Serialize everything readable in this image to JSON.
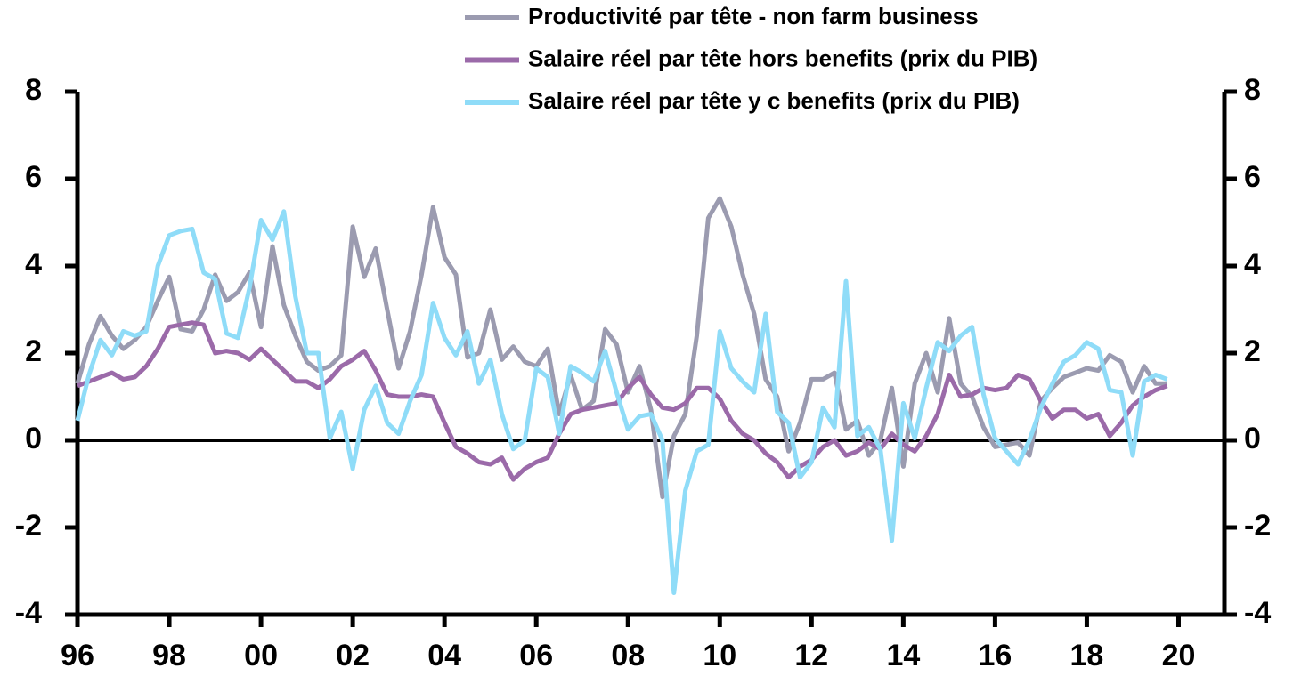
{
  "chart_data": {
    "type": "line",
    "x": [
      1996,
      1996.25,
      1996.5,
      1996.75,
      1997,
      1997.25,
      1997.5,
      1997.75,
      1998,
      1998.25,
      1998.5,
      1998.75,
      1999,
      1999.25,
      1999.5,
      1999.75,
      2000,
      2000.25,
      2000.5,
      2000.75,
      2001,
      2001.25,
      2001.5,
      2001.75,
      2002,
      2002.25,
      2002.5,
      2002.75,
      2003,
      2003.25,
      2003.5,
      2003.75,
      2004,
      2004.25,
      2004.5,
      2004.75,
      2005,
      2005.25,
      2005.5,
      2005.75,
      2006,
      2006.25,
      2006.5,
      2006.75,
      2007,
      2007.25,
      2007.5,
      2007.75,
      2008,
      2008.25,
      2008.5,
      2008.75,
      2009,
      2009.25,
      2009.5,
      2009.75,
      2010,
      2010.25,
      2010.5,
      2010.75,
      2011,
      2011.25,
      2011.5,
      2011.75,
      2012,
      2012.25,
      2012.5,
      2012.75,
      2013,
      2013.25,
      2013.5,
      2013.75,
      2014,
      2014.25,
      2014.5,
      2014.75,
      2015,
      2015.25,
      2015.5,
      2015.75,
      2016,
      2016.25,
      2016.5,
      2016.75,
      2017,
      2017.25,
      2017.5,
      2017.75,
      2018,
      2018.25,
      2018.5,
      2018.75,
      2019,
      2019.25,
      2019.5,
      2019.75
    ],
    "series": [
      {
        "name": "Productivité par tête - non farm business",
        "color": "#9b9bb0",
        "values": [
          1.3,
          2.2,
          2.85,
          2.4,
          2.1,
          2.3,
          2.6,
          3.2,
          3.75,
          2.55,
          2.5,
          3.0,
          3.8,
          3.2,
          3.4,
          3.85,
          2.6,
          4.45,
          3.1,
          2.4,
          1.8,
          1.6,
          1.7,
          1.95,
          4.9,
          3.75,
          4.4,
          3.0,
          1.65,
          2.5,
          3.8,
          5.35,
          4.2,
          3.8,
          1.9,
          2.0,
          3.0,
          1.85,
          2.15,
          1.8,
          1.7,
          2.1,
          0.6,
          1.5,
          0.7,
          0.9,
          2.55,
          2.2,
          1.1,
          1.7,
          0.7,
          -1.3,
          0.1,
          0.6,
          2.4,
          5.1,
          5.55,
          4.9,
          3.8,
          2.9,
          1.4,
          1.0,
          -0.25,
          0.4,
          1.4,
          1.4,
          1.55,
          0.25,
          0.45,
          -0.35,
          0.0,
          1.2,
          -0.6,
          1.3,
          2.0,
          1.1,
          2.8,
          1.3,
          1.0,
          0.3,
          -0.15,
          -0.1,
          -0.05,
          -0.35,
          0.9,
          1.2,
          1.45,
          1.55,
          1.65,
          1.6,
          1.95,
          1.8,
          1.1,
          1.7,
          1.3,
          1.3
        ]
      },
      {
        "name": "Salaire réel par tête hors benefits (prix du PIB)",
        "color": "#9b6aa9",
        "values": [
          1.25,
          1.35,
          1.45,
          1.55,
          1.4,
          1.45,
          1.7,
          2.1,
          2.6,
          2.65,
          2.7,
          2.65,
          2.0,
          2.05,
          2.0,
          1.85,
          2.1,
          1.85,
          1.6,
          1.35,
          1.35,
          1.2,
          1.4,
          1.7,
          1.85,
          2.05,
          1.6,
          1.05,
          1.0,
          1.0,
          1.05,
          1.0,
          0.4,
          -0.15,
          -0.3,
          -0.5,
          -0.55,
          -0.4,
          -0.9,
          -0.65,
          -0.5,
          -0.4,
          0.15,
          0.6,
          0.7,
          0.75,
          0.8,
          0.85,
          1.2,
          1.45,
          1.05,
          0.75,
          0.7,
          0.85,
          1.2,
          1.2,
          0.95,
          0.45,
          0.15,
          0.0,
          -0.3,
          -0.5,
          -0.85,
          -0.6,
          -0.45,
          -0.15,
          0.0,
          -0.35,
          -0.25,
          -0.05,
          -0.2,
          0.15,
          -0.1,
          -0.25,
          0.1,
          0.6,
          1.5,
          1.0,
          1.05,
          1.2,
          1.15,
          1.2,
          1.5,
          1.4,
          0.9,
          0.5,
          0.7,
          0.7,
          0.5,
          0.6,
          0.1,
          0.4,
          0.8,
          1.0,
          1.15,
          1.25
        ]
      },
      {
        "name": "Salaire réel par tête y c benefits (prix du PIB)",
        "color": "#8fdcf8",
        "values": [
          0.45,
          1.5,
          2.3,
          1.95,
          2.5,
          2.4,
          2.5,
          4.0,
          4.7,
          4.8,
          4.85,
          3.85,
          3.7,
          2.45,
          2.35,
          3.5,
          5.05,
          4.6,
          5.25,
          3.3,
          2.0,
          2.0,
          0.05,
          0.65,
          -0.65,
          0.7,
          1.25,
          0.4,
          0.15,
          0.9,
          1.5,
          3.15,
          2.35,
          1.95,
          2.5,
          1.3,
          1.85,
          0.6,
          -0.2,
          0.0,
          1.65,
          1.45,
          0.15,
          1.7,
          1.55,
          1.35,
          2.05,
          1.1,
          0.25,
          0.55,
          0.6,
          0.0,
          -3.5,
          -1.15,
          -0.25,
          -0.1,
          2.5,
          1.65,
          1.35,
          1.1,
          2.9,
          0.65,
          0.4,
          -0.85,
          -0.5,
          0.75,
          0.3,
          3.65,
          0.1,
          0.3,
          -0.2,
          -2.3,
          0.85,
          0.05,
          1.2,
          2.25,
          2.05,
          2.4,
          2.6,
          1.05,
          0.05,
          -0.25,
          -0.55,
          0.0,
          0.75,
          1.3,
          1.8,
          1.95,
          2.25,
          2.1,
          1.15,
          1.1,
          -0.35,
          1.35,
          1.5,
          1.4
        ]
      }
    ],
    "xlim": [
      1996,
      2021
    ],
    "xticks": [
      {
        "value": 1996,
        "label": "96"
      },
      {
        "value": 1998,
        "label": "98"
      },
      {
        "value": 2000,
        "label": "00"
      },
      {
        "value": 2002,
        "label": "02"
      },
      {
        "value": 2004,
        "label": "04"
      },
      {
        "value": 2006,
        "label": "06"
      },
      {
        "value": 2008,
        "label": "08"
      },
      {
        "value": 2010,
        "label": "10"
      },
      {
        "value": 2012,
        "label": "12"
      },
      {
        "value": 2014,
        "label": "14"
      },
      {
        "value": 2016,
        "label": "16"
      },
      {
        "value": 2018,
        "label": "18"
      },
      {
        "value": 2020,
        "label": "20"
      }
    ],
    "ylim": [
      -4,
      8
    ],
    "yticks": [
      -4,
      -2,
      0,
      2,
      4,
      6,
      8
    ],
    "y2lim": [
      -4,
      8
    ],
    "y2ticks": [
      -4,
      -2,
      0,
      2,
      4,
      6,
      8
    ]
  }
}
